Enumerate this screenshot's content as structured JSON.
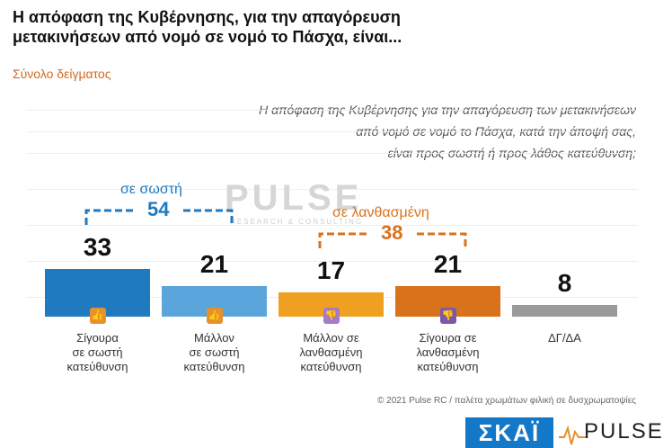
{
  "header": {
    "title_line1": "Η απόφαση της Κυβέρνησης, για την απαγόρευση",
    "title_line2": "μετακινήσεων από νομό σε νομό το Πάσχα, είναι...",
    "subtitle": "Σύνολο δείγματος"
  },
  "question": {
    "line1": "Η απόφαση της Κυβέρνησης για την απαγόρευση των μετακινήσεων",
    "line2": "από νομό σε νομό το Πάσχα, κατά την άποψή σας,",
    "line3": "είναι προς σωστή ή προς λάθος κατεύθυνση;"
  },
  "watermark": {
    "main": "PULSE",
    "sub": "RESEARCH & CONSULTING"
  },
  "groups": {
    "right": {
      "label": "σε σωστή",
      "total": "54",
      "color": "#1f7ac0"
    },
    "wrong": {
      "label": "σε λανθασμένη",
      "total": "38",
      "color": "#d8731c"
    }
  },
  "chart_data": {
    "type": "bar",
    "categories": [
      [
        "Σίγουρα",
        "σε σωστή",
        "κατεύθυνση"
      ],
      [
        "Μάλλον",
        "σε σωστή",
        "κατεύθυνση"
      ],
      [
        "Μάλλον σε",
        "λανθασμένη",
        "κατεύθυνση"
      ],
      [
        "Σίγουρα σε",
        "λανθασμένη",
        "κατεύθυνση"
      ],
      [
        "ΔΓ/ΔΑ"
      ]
    ],
    "values": [
      33,
      21,
      17,
      21,
      8
    ],
    "value_labels": [
      "33",
      "21",
      "17",
      "21",
      "8"
    ],
    "colors": [
      "#1f7ac0",
      "#5aa6dc",
      "#f0a020",
      "#d8731c",
      "#9a9a9a"
    ],
    "icons": [
      "double-thumbs-up-icon",
      "thumbs-up-icon",
      "thumbs-down-icon",
      "double-thumbs-down-icon",
      null
    ],
    "icon_colors": [
      "#e8902a",
      "#e8902a",
      "#a57ac8",
      "#7a5aa8",
      null
    ]
  },
  "footer": {
    "copyright": "© 2021 Pulse RC",
    "separator": "/",
    "palette_note": "παλέτα χρωμάτων φιλική σε δυσχρωματοψίες"
  },
  "logos": {
    "skai": "ΣΚΑΪ",
    "pulse": "PULSE"
  }
}
